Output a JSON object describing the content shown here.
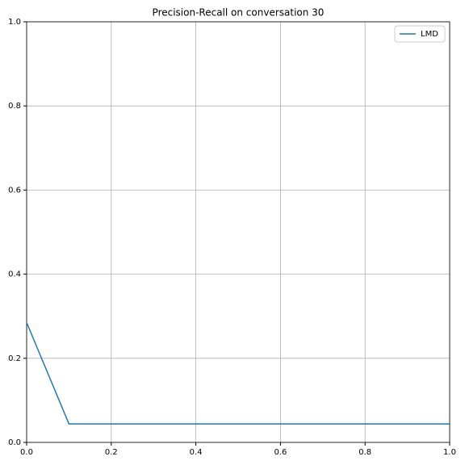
{
  "chart_data": {
    "type": "line",
    "title": "Precision-Recall on conversation 30",
    "x": [
      0,
      0.1,
      0.2,
      0.3,
      0.4,
      0.5,
      0.6,
      0.7,
      0.8,
      0.9,
      1.0
    ],
    "series": [
      {
        "name": "LMD",
        "color": "#1f77b4",
        "values": [
          0.285,
          0.044,
          0.044,
          0.044,
          0.044,
          0.044,
          0.044,
          0.044,
          0.044,
          0.044,
          0.044
        ]
      }
    ],
    "xlim": [
      0,
      1
    ],
    "ylim": [
      0,
      1
    ],
    "xticks": [
      {
        "value": 0,
        "label": "0.0"
      },
      0.2,
      0.4,
      0.6,
      0.8,
      {
        "value": 1,
        "label": "1.0"
      }
    ],
    "yticks": [
      {
        "value": 0,
        "label": "0.0"
      },
      0.2,
      0.4,
      0.6,
      0.8,
      {
        "value": 1,
        "label": "1.0"
      }
    ],
    "grid": true,
    "legend": "upper right"
  }
}
